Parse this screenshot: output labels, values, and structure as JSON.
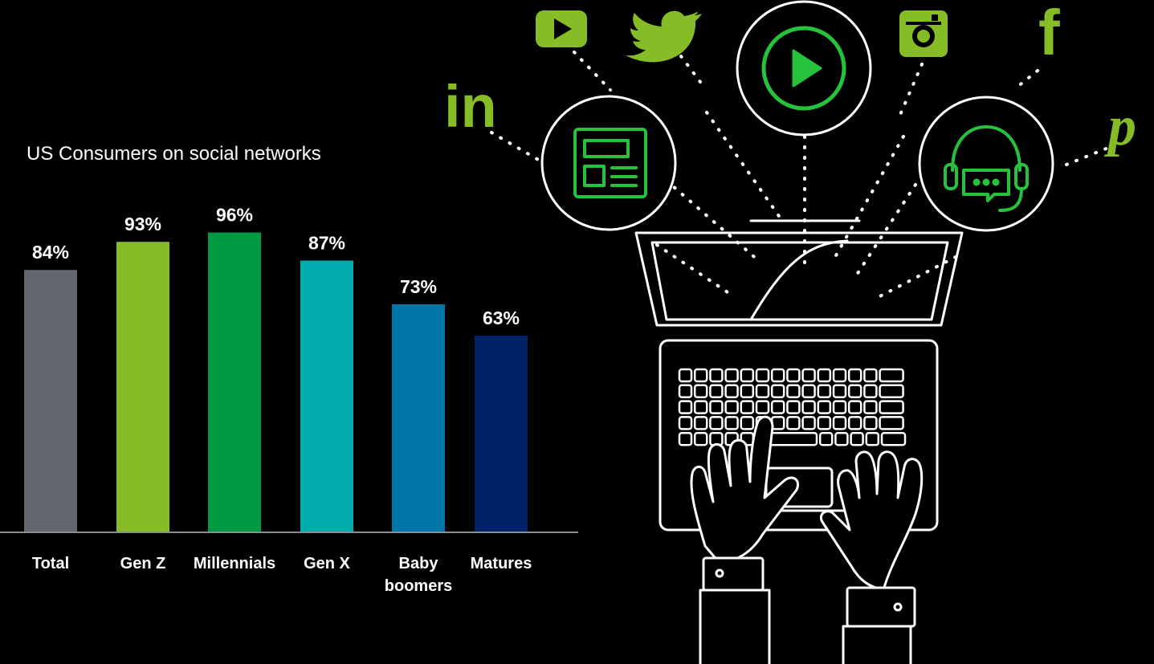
{
  "colors": {
    "background": "#000000",
    "line_art": "#ffffff",
    "icon_green": "#86bc25",
    "bright_green": "#26c23c",
    "axis": "#8a8d91",
    "text": "#ffffff"
  },
  "chart_data": {
    "type": "bar",
    "title": "US Consumers on social networks",
    "categories": [
      "Total",
      "Gen Z",
      "Millennials",
      "Gen X",
      "Baby boomers",
      "Matures"
    ],
    "category_lines": [
      [
        "Total"
      ],
      [
        "Gen Z"
      ],
      [
        "Millennials"
      ],
      [
        "Gen X"
      ],
      [
        "Baby",
        "boomers"
      ],
      [
        "Matures"
      ]
    ],
    "values": [
      84,
      93,
      96,
      87,
      73,
      63
    ],
    "value_labels": [
      "84%",
      "93%",
      "96%",
      "87%",
      "73%",
      "63%"
    ],
    "bar_colors": [
      "#62666d",
      "#86bc25",
      "#009a44",
      "#00abab",
      "#0076a8",
      "#012169"
    ],
    "ylim": [
      0,
      100
    ],
    "xlabel": "",
    "ylabel": "",
    "grid": false,
    "legend": "none"
  },
  "illustration": {
    "icons": [
      "linkedin-icon",
      "youtube-icon",
      "twitter-icon",
      "play-icon",
      "instagram-icon",
      "facebook-icon",
      "pinterest-icon",
      "news-icon",
      "headset-icon"
    ],
    "linkedin_glyph": "in",
    "facebook_glyph": "f",
    "pinterest_glyph": "p"
  }
}
